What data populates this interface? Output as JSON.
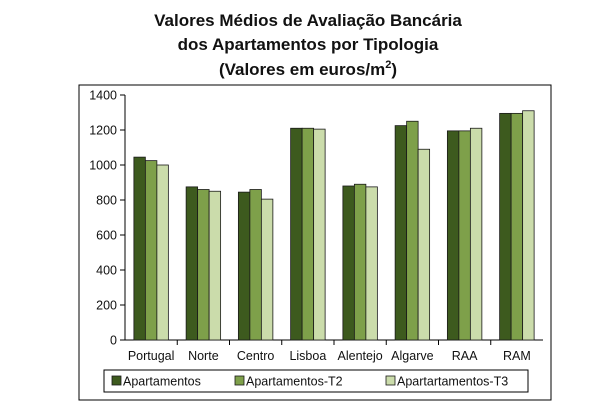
{
  "chart_data": {
    "type": "bar",
    "title": [
      "Valores Médios de Avaliação Bancária",
      "dos Apartamentos por Tipologia",
      "(Valores em euros/m",
      "2",
      ")"
    ],
    "categories": [
      "Portugal",
      "Norte",
      "Centro",
      "Lisboa",
      "Alentejo",
      "Algarve",
      "RAA",
      "RAM"
    ],
    "series": [
      {
        "name": "Apartamentos",
        "color": "#3d5a1e",
        "values": [
          1045,
          875,
          845,
          1210,
          880,
          1225,
          1195,
          1295
        ]
      },
      {
        "name": "Apartamentos-T2",
        "color": "#7ea04a",
        "values": [
          1025,
          860,
          860,
          1210,
          890,
          1250,
          1195,
          1295
        ]
      },
      {
        "name": "Apartartamentos-T3",
        "color": "#cbdcab",
        "values": [
          1000,
          850,
          805,
          1205,
          875,
          1090,
          1210,
          1310
        ]
      }
    ],
    "ylim": [
      0,
      1400
    ],
    "yticks": [
      0,
      200,
      400,
      600,
      800,
      1000,
      1200,
      1400
    ],
    "grid": false,
    "legend_position": "bottom"
  }
}
